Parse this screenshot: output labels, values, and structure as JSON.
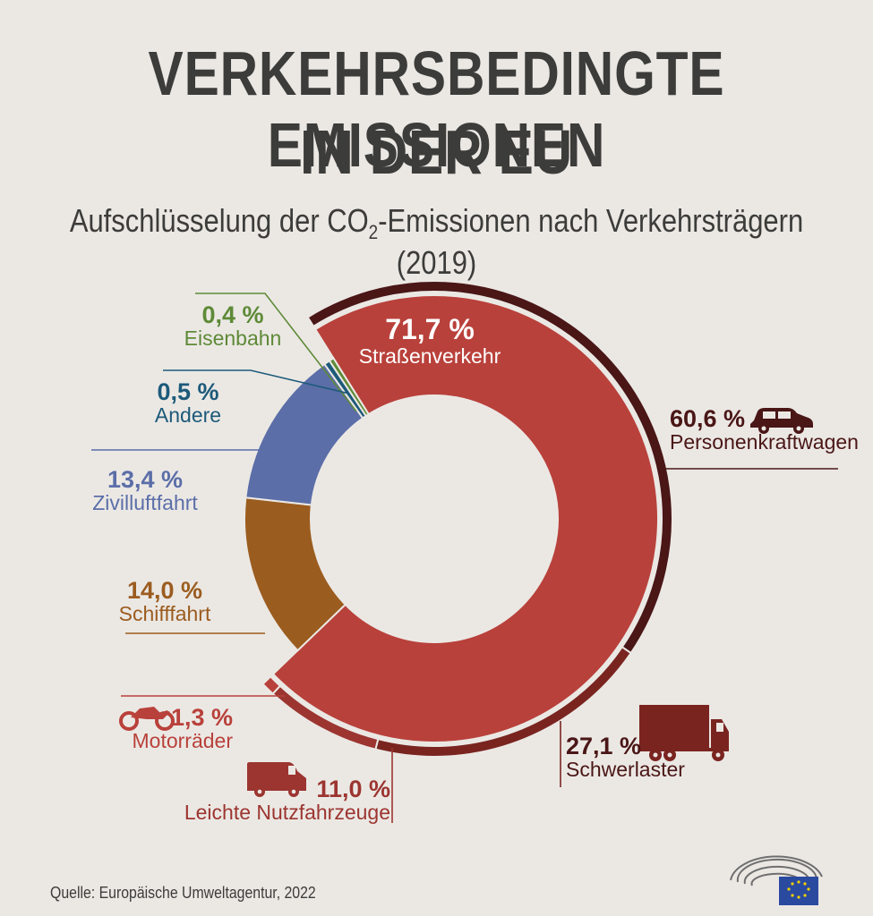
{
  "header": {
    "title_line1": "VERKEHRSBEDINGTE EMISSIONEN",
    "title_line2": "IN DER EU",
    "subtitle_pre": "Aufschlüsselung der CO",
    "subtitle_sub": "2",
    "subtitle_post": "-Emissionen nach Verkehrsträgern (2019)"
  },
  "footer": {
    "source": "Quelle: Europäische Umweltagentur, 2022"
  },
  "chart_data": {
    "type": "pie",
    "variant": "donut with outer sub-segment ring for road transport",
    "title": "VERKEHRSBEDINGTE EMISSIONEN IN DER EU",
    "subtitle": "Aufschlüsselung der CO2-Emissionen nach Verkehrsträgern (2019)",
    "slices": [
      {
        "label": "Straßenverkehr",
        "value": 71.7,
        "value_text": "71,7 %",
        "color": "#b9413b"
      },
      {
        "label": "Schifffahrt",
        "value": 14.0,
        "value_text": "14,0 %",
        "color": "#9b5c1f"
      },
      {
        "label": "Zivilluftfahrt",
        "value": 13.4,
        "value_text": "13,4 %",
        "color": "#5b6ea8"
      },
      {
        "label": "Andere",
        "value": 0.5,
        "value_text": "0,5 %",
        "color": "#1d5a7a"
      },
      {
        "label": "Eisenbahn",
        "value": 0.4,
        "value_text": "0,4 %",
        "color": "#5e8a37"
      }
    ],
    "road_breakdown": [
      {
        "label": "Personenkraftwagen",
        "value": 60.6,
        "value_text": "60,6 %",
        "color": "#4a1616",
        "icon": "car-icon"
      },
      {
        "label": "Schwerlaster",
        "value": 27.1,
        "value_text": "27,1 %",
        "color": "#7a2420",
        "icon": "truck-icon"
      },
      {
        "label": "Leichte Nutzfahrzeuge",
        "value": 11.0,
        "value_text": "11,0 %",
        "color": "#9c3530",
        "icon": "van-icon"
      },
      {
        "label": "Motorräder",
        "value": 1.3,
        "value_text": "1,3 %",
        "color": "#b9413b",
        "icon": "motorcycle-icon"
      }
    ],
    "legend": "none"
  }
}
